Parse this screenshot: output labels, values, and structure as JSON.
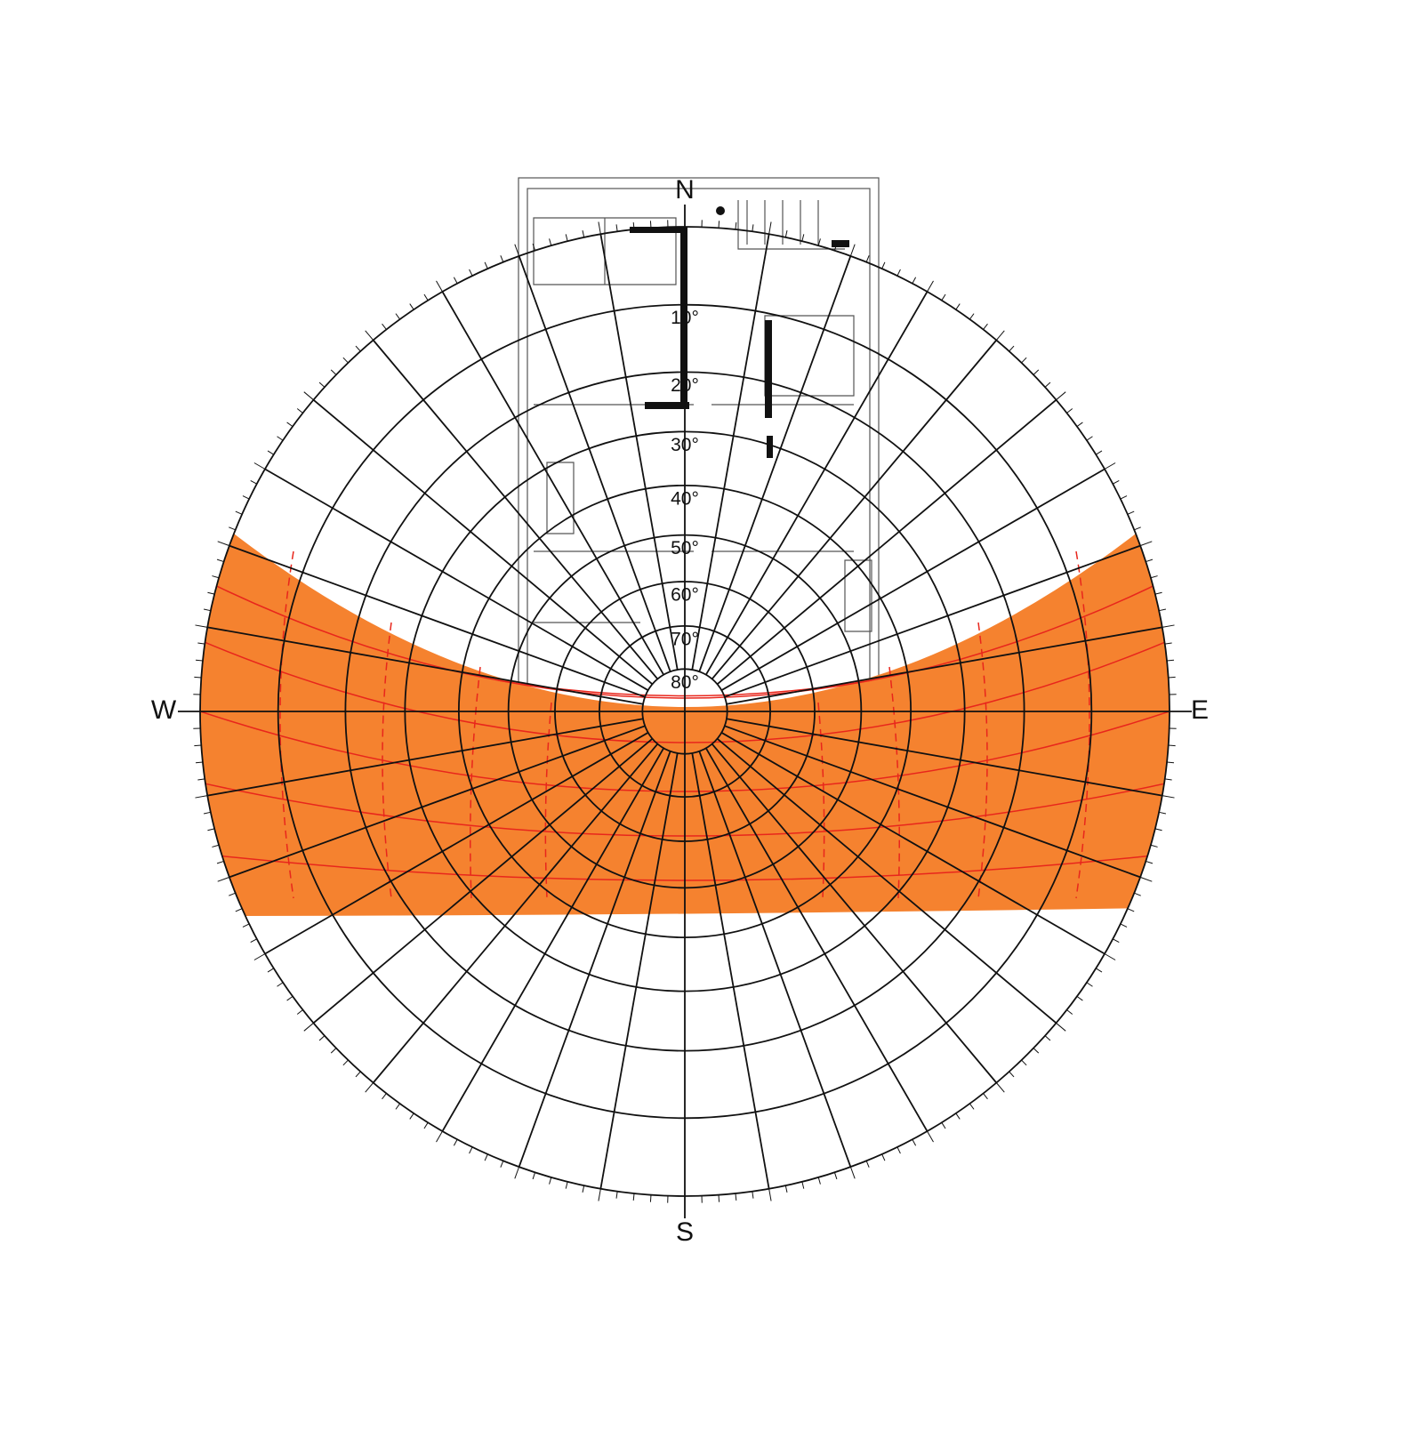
{
  "compass": {
    "north": "N",
    "south": "S",
    "east": "E",
    "west": "W"
  },
  "altitude_labels": [
    "10°",
    "20°",
    "30°",
    "40°",
    "50°",
    "60°",
    "70°",
    "80°"
  ]
}
